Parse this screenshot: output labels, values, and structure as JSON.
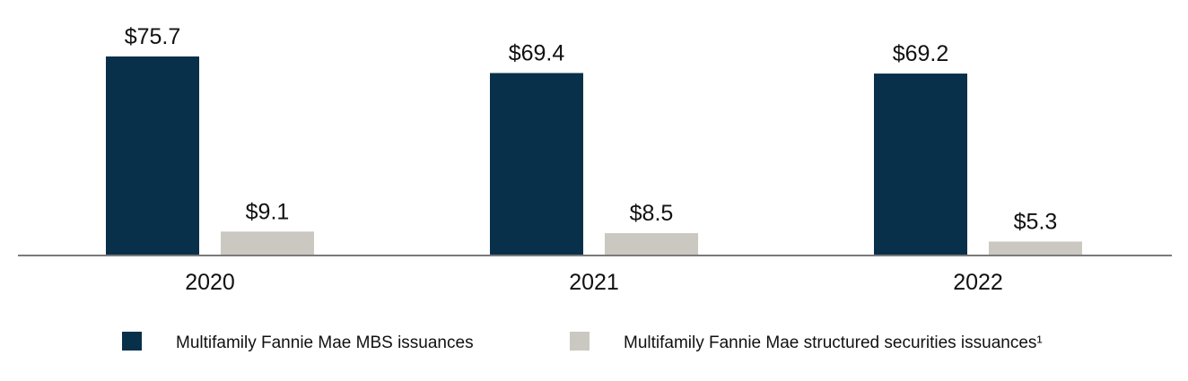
{
  "chart_data": {
    "type": "bar",
    "categories": [
      "2020",
      "2021",
      "2022"
    ],
    "series": [
      {
        "name": "Multifamily Fannie Mae MBS issuances",
        "color": "#08304b",
        "values": [
          75.7,
          69.4,
          69.2
        ],
        "labels": [
          "$75.7",
          "$69.4",
          "$69.2"
        ]
      },
      {
        "name": "Multifamily Fannie Mae structured securities issuances¹",
        "color": "#cbc8c2",
        "values": [
          9.1,
          8.5,
          5.3
        ],
        "labels": [
          "$9.1",
          "$8.5",
          "$5.3"
        ]
      }
    ],
    "ylim": [
      0,
      75.7
    ],
    "grid": false,
    "legend_position": "bottom"
  }
}
